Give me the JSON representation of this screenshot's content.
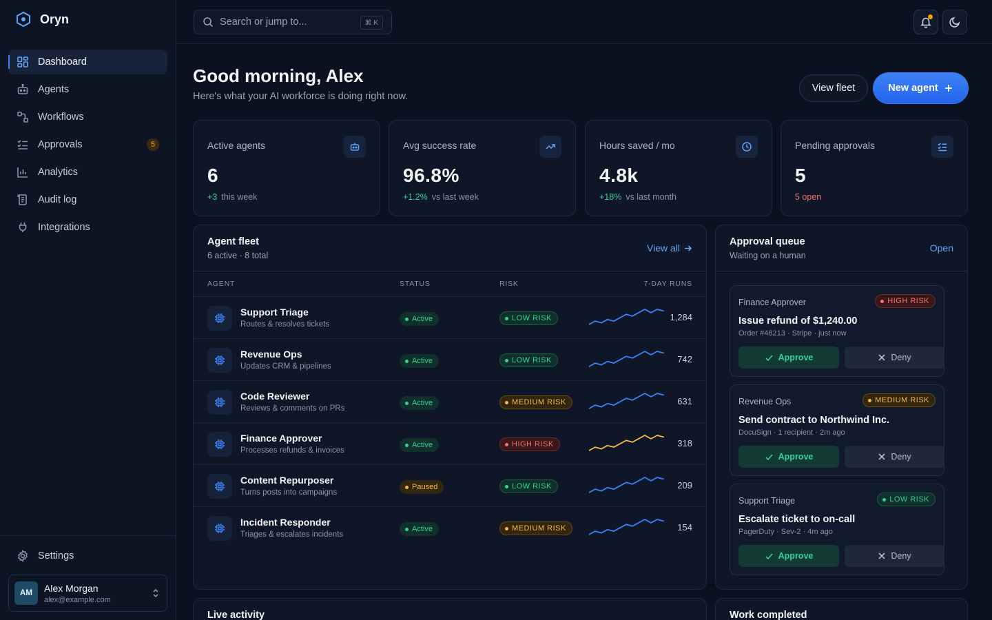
{
  "brand": {
    "name": "Oryn"
  },
  "sidebar": {
    "items": [
      {
        "label": "Dashboard",
        "icon": "grid-icon",
        "active": true
      },
      {
        "label": "Agents",
        "icon": "robot-icon"
      },
      {
        "label": "Workflows",
        "icon": "workflow-icon"
      },
      {
        "label": "Approvals",
        "icon": "checklist-icon",
        "badge": "5"
      },
      {
        "label": "Analytics",
        "icon": "bar-chart-icon"
      },
      {
        "label": "Audit log",
        "icon": "log-icon"
      },
      {
        "label": "Integrations",
        "icon": "plug-icon"
      }
    ],
    "settings_label": "Settings",
    "user": {
      "initials": "AM",
      "name": "Alex Morgan",
      "email": "alex@example.com"
    }
  },
  "topbar": {
    "search_placeholder": "Search or jump to...",
    "search_shortcut": "⌘ K"
  },
  "header": {
    "greeting": "Good morning, Alex",
    "subtitle": "Here's what your AI workforce is doing right now.",
    "view_fleet_label": "View fleet",
    "new_agent_label": "New agent"
  },
  "kpis": [
    {
      "label": "Active agents",
      "value": "6",
      "delta": "+3",
      "foot": "this week",
      "icon": "robot-icon"
    },
    {
      "label": "Avg success rate",
      "value": "96.8%",
      "delta": "+1.2%",
      "foot": "vs last week",
      "icon": "trending-up-icon"
    },
    {
      "label": "Hours saved / mo",
      "value": "4.8k",
      "delta": "+18%",
      "foot": "vs last month",
      "icon": "clock-icon"
    },
    {
      "label": "Pending approvals",
      "value": "5",
      "foot_alert": "5 open",
      "icon": "checklist-icon"
    }
  ],
  "fleet": {
    "title": "Agent fleet",
    "subtitle": "6 active · 8 total",
    "view_all_label": "View all",
    "columns": [
      "AGENT",
      "STATUS",
      "RISK",
      "7-DAY RUNS"
    ],
    "rows": [
      {
        "name": "Support Triage",
        "desc": "Routes & resolves tickets",
        "status": "Active",
        "risk": "LOW RISK",
        "runs": "1,284",
        "spark": [
          3,
          5,
          4,
          6,
          5,
          7,
          9,
          8,
          10,
          12,
          10,
          12,
          11
        ]
      },
      {
        "name": "Revenue Ops",
        "desc": "Updates CRM & pipelines",
        "status": "Active",
        "risk": "LOW RISK",
        "runs": "742",
        "spark": [
          3,
          5,
          4,
          6,
          5,
          7,
          9,
          8,
          10,
          12,
          10,
          12,
          11
        ]
      },
      {
        "name": "Code Reviewer",
        "desc": "Reviews & comments on PRs",
        "status": "Active",
        "risk": "MEDIUM RISK",
        "runs": "631",
        "spark": [
          3,
          5,
          4,
          6,
          5,
          7,
          9,
          8,
          10,
          12,
          10,
          12,
          11
        ]
      },
      {
        "name": "Finance Approver",
        "desc": "Processes refunds & invoices",
        "status": "Active",
        "risk": "HIGH RISK",
        "runs": "318",
        "spark": [
          3,
          5,
          4,
          6,
          5,
          7,
          9,
          8,
          10,
          12,
          10,
          12,
          11
        ]
      },
      {
        "name": "Content Repurposer",
        "desc": "Turns posts into campaigns",
        "status": "Paused",
        "risk": "LOW RISK",
        "runs": "209",
        "spark": [
          3,
          5,
          4,
          6,
          5,
          7,
          9,
          8,
          10,
          12,
          10,
          12,
          11
        ]
      },
      {
        "name": "Incident Responder",
        "desc": "Triages & escalates incidents",
        "status": "Active",
        "risk": "MEDIUM RISK",
        "runs": "154",
        "spark": [
          3,
          5,
          4,
          6,
          5,
          7,
          9,
          8,
          10,
          12,
          10,
          12,
          11
        ]
      }
    ]
  },
  "approvals": {
    "title": "Approval queue",
    "subtitle": "Waiting on a human",
    "open_label": "Open",
    "items": [
      {
        "agent": "Finance Approver",
        "risk": "HIGH RISK",
        "title": "Issue refund of $1,240.00",
        "meta": "Order #48213 · Stripe · just now",
        "approve_label": "Approve",
        "deny_label": "Deny"
      },
      {
        "agent": "Revenue Ops",
        "risk": "MEDIUM RISK",
        "title": "Send contract to Northwind Inc.",
        "meta": "DocuSign · 1 recipient · 2m ago",
        "approve_label": "Approve",
        "deny_label": "Deny"
      },
      {
        "agent": "Support Triage",
        "risk": "LOW RISK",
        "title": "Escalate ticket to on-call",
        "meta": "PagerDuty · Sev-2 · 4m ago",
        "approve_label": "Approve",
        "deny_label": "Deny"
      }
    ]
  },
  "bottom_panels": {
    "live_activity_title": "Live activity",
    "work_completed_title": "Work completed"
  },
  "colors": {
    "accent": "#3b82f6",
    "success": "#34d399",
    "warning": "#f5b84a",
    "danger": "#f87171",
    "background": "#0b1120"
  }
}
